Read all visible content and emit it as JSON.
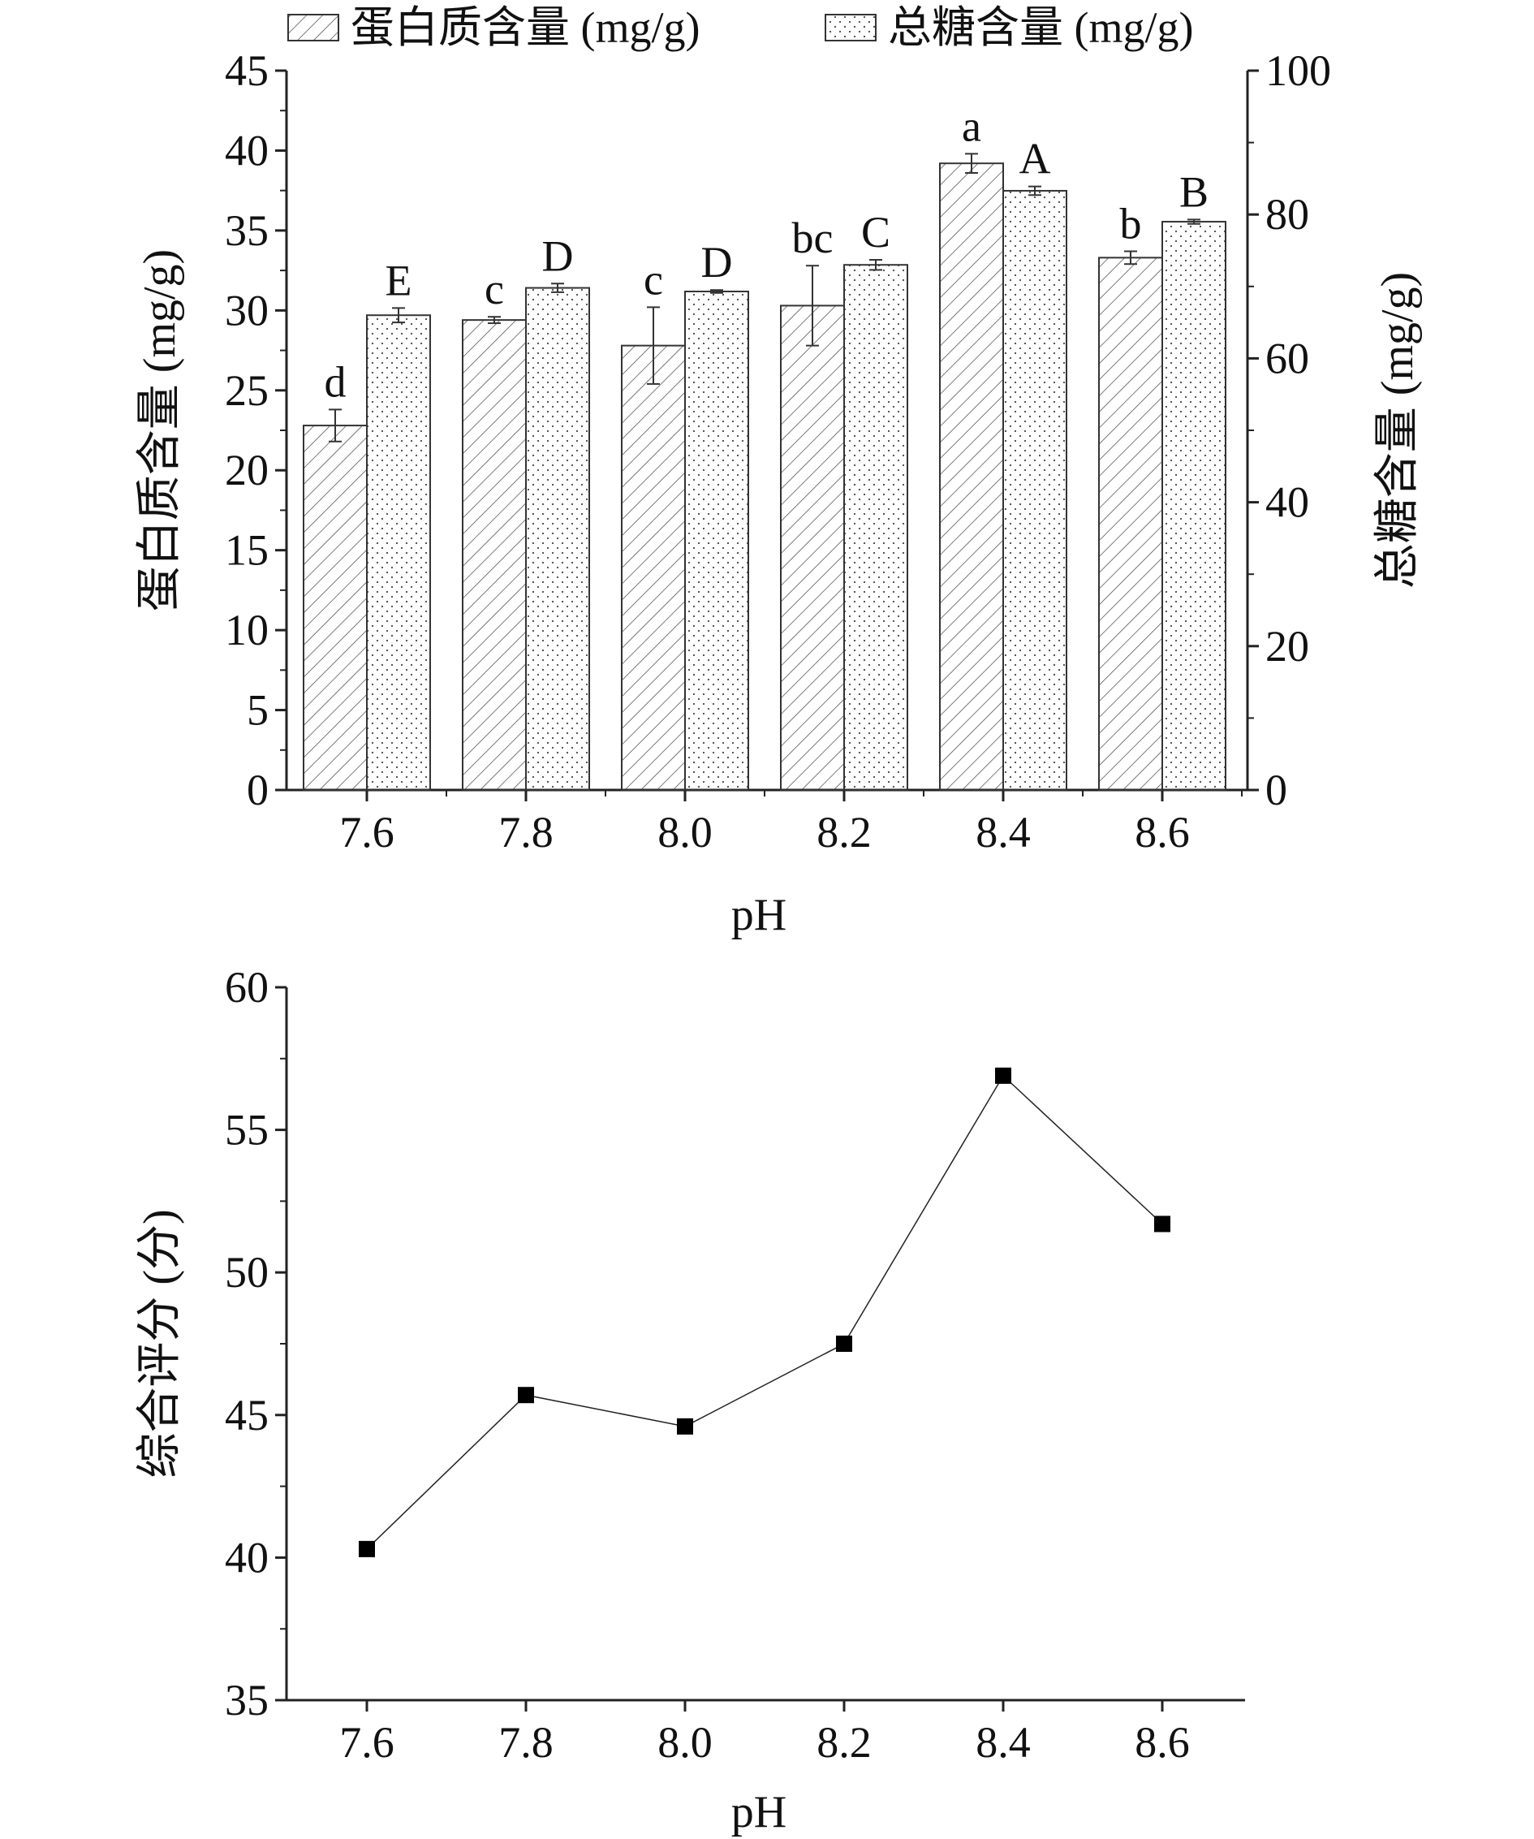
{
  "chart_data": [
    {
      "type": "bar",
      "xlabel": "pH",
      "ylabel": "蛋白质含量 (mg/g)",
      "ylabel_right": "总糖含量 (mg/g)",
      "categories": [
        "7.6",
        "7.8",
        "8.0",
        "8.2",
        "8.4",
        "8.6"
      ],
      "ylim": [
        0,
        45
      ],
      "yticks": [
        "0",
        "5",
        "10",
        "15",
        "20",
        "25",
        "30",
        "35",
        "40",
        "45"
      ],
      "ylim_right": [
        0,
        100
      ],
      "yticks_right": [
        "0",
        "20",
        "40",
        "60",
        "80",
        "100"
      ],
      "legend_position": "top",
      "series": [
        {
          "name": "蛋白质含量 (mg/g)",
          "axis": "left",
          "pattern": "hatch",
          "values": [
            22.8,
            29.4,
            27.8,
            30.3,
            39.2,
            33.3
          ],
          "errors": [
            1.0,
            0.2,
            2.4,
            2.5,
            0.6,
            0.4
          ],
          "labels": [
            "d",
            "c",
            "c",
            "bc",
            "a",
            "b"
          ]
        },
        {
          "name": "总糖含量 (mg/g)",
          "axis": "right",
          "pattern": "dots",
          "values": [
            66.0,
            69.8,
            69.3,
            73.0,
            83.3,
            79.0
          ],
          "errors": [
            1.0,
            0.6,
            0.2,
            0.7,
            0.6,
            0.3
          ],
          "labels": [
            "E",
            "D",
            "D",
            "C",
            "A",
            "B"
          ]
        }
      ]
    },
    {
      "type": "line",
      "xlabel": "pH",
      "ylabel": "综合评分 (分)",
      "x": [
        "7.6",
        "7.8",
        "8.0",
        "8.2",
        "8.4",
        "8.6"
      ],
      "values": [
        40.3,
        45.7,
        44.6,
        47.5,
        56.9,
        51.7
      ],
      "ylim": [
        35,
        60
      ],
      "yticks": [
        "35",
        "40",
        "45",
        "50",
        "55",
        "60"
      ],
      "marker": "square"
    }
  ]
}
